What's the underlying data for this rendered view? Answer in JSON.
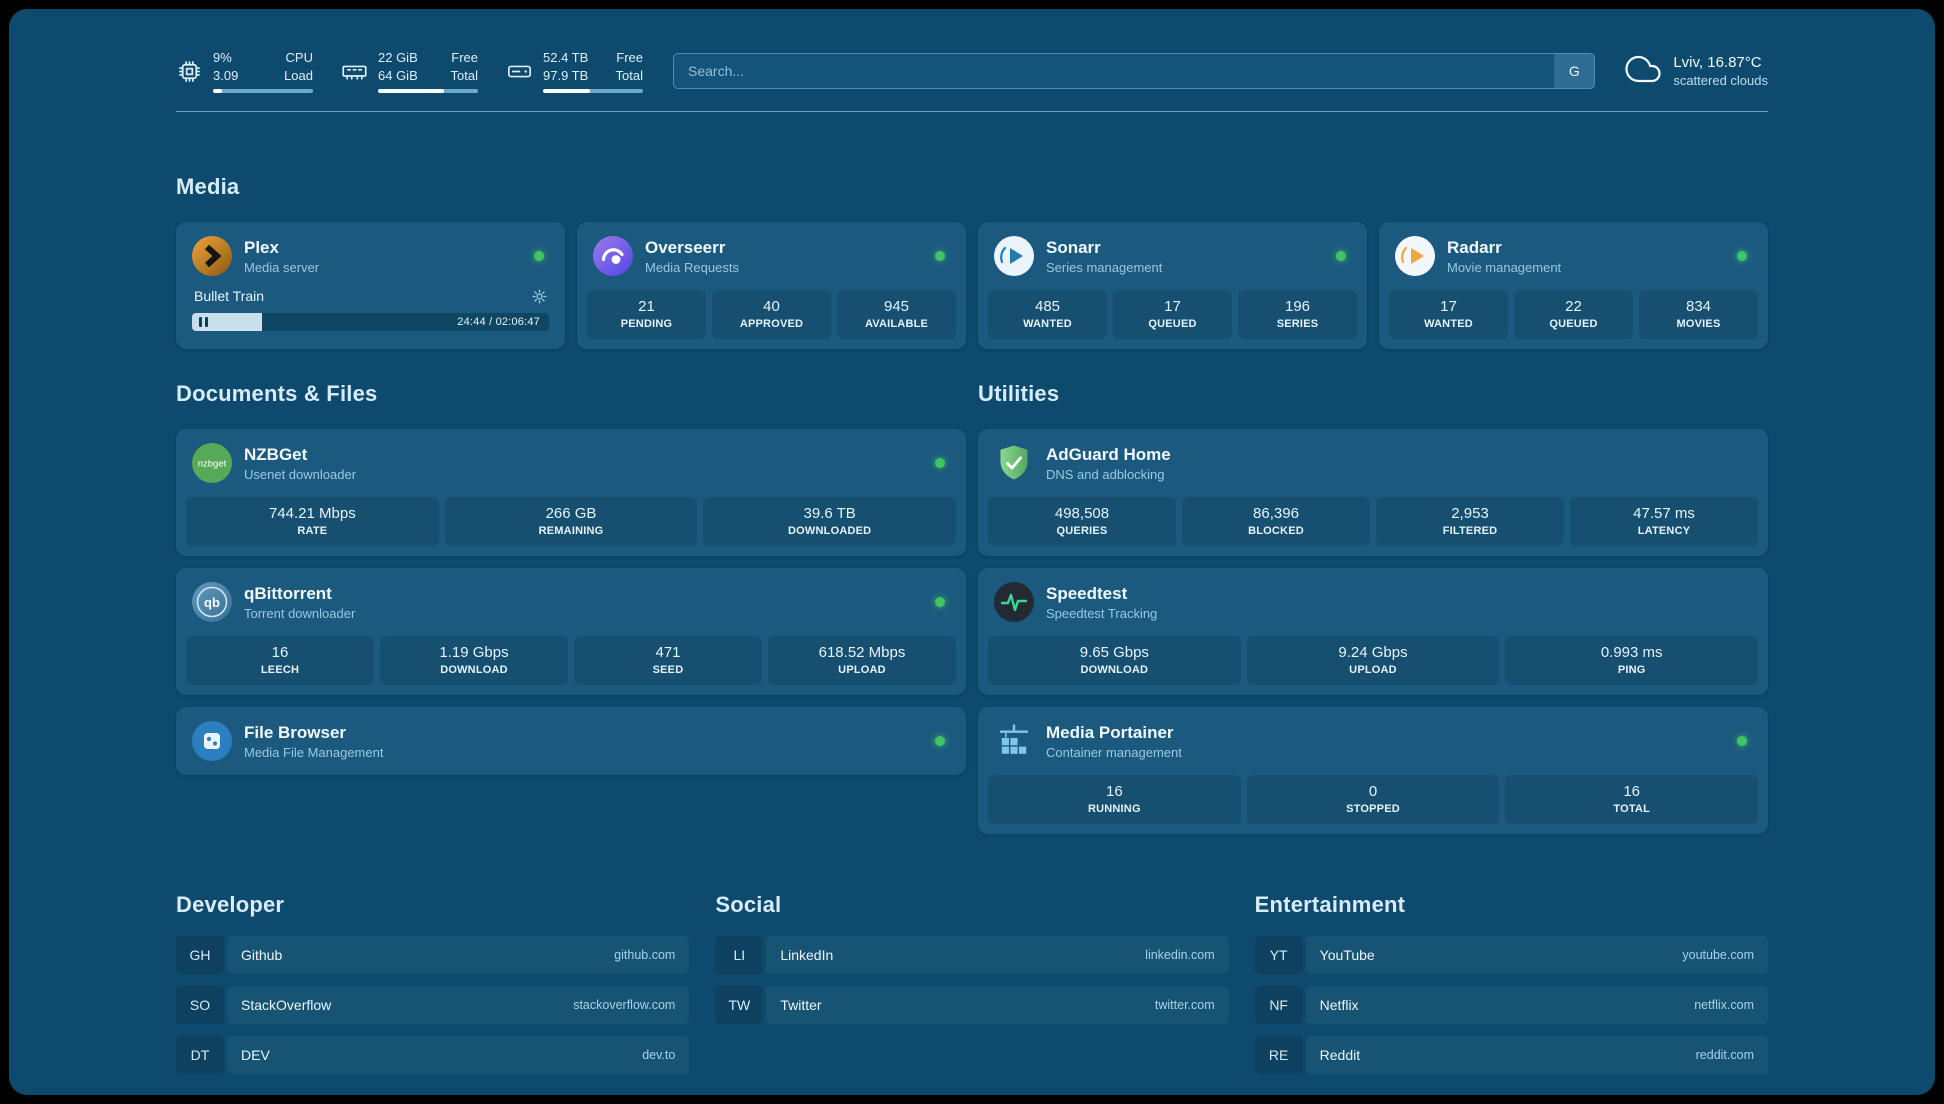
{
  "colors": {
    "background": "#0E4A6E",
    "card": "#1B5A7E",
    "status_online": "#41C463",
    "text_muted": "#9BC8E0"
  },
  "header": {
    "cpu": {
      "value_top": "9%",
      "value_bottom": "3.09",
      "label_top": "CPU",
      "label_bottom": "Load",
      "bar_percent": 9
    },
    "ram": {
      "value_top": "22 GiB",
      "value_bottom": "64 GiB",
      "label_top": "Free",
      "label_bottom": "Total",
      "bar_percent": 66
    },
    "disk": {
      "value_top": "52.4 TB",
      "value_bottom": "97.9 TB",
      "label_top": "Free",
      "label_bottom": "Total",
      "bar_percent": 47
    },
    "search": {
      "placeholder": "Search...",
      "engine_label": "G"
    },
    "weather": {
      "location": "Lviv, 16.87°C",
      "condition": "scattered clouds"
    }
  },
  "sections": {
    "media": {
      "title": "Media"
    },
    "documents": {
      "title": "Documents & Files"
    },
    "utilities": {
      "title": "Utilities"
    },
    "developer": {
      "title": "Developer"
    },
    "social": {
      "title": "Social"
    },
    "entertainment": {
      "title": "Entertainment"
    }
  },
  "apps": {
    "plex": {
      "name": "Plex",
      "subtitle": "Media server",
      "now_playing": {
        "title": "Bullet Train",
        "time": "24:44 / 02:06:47",
        "progress_percent": 19.5
      }
    },
    "overseerr": {
      "name": "Overseerr",
      "subtitle": "Media Requests",
      "stats": [
        {
          "value": "21",
          "label": "PENDING"
        },
        {
          "value": "40",
          "label": "APPROVED"
        },
        {
          "value": "945",
          "label": "AVAILABLE"
        }
      ]
    },
    "sonarr": {
      "name": "Sonarr",
      "subtitle": "Series management",
      "stats": [
        {
          "value": "485",
          "label": "WANTED"
        },
        {
          "value": "17",
          "label": "QUEUED"
        },
        {
          "value": "196",
          "label": "SERIES"
        }
      ]
    },
    "radarr": {
      "name": "Radarr",
      "subtitle": "Movie management",
      "stats": [
        {
          "value": "17",
          "label": "WANTED"
        },
        {
          "value": "22",
          "label": "QUEUED"
        },
        {
          "value": "834",
          "label": "MOVIES"
        }
      ]
    },
    "nzbget": {
      "name": "NZBGet",
      "subtitle": "Usenet downloader",
      "icon_text": "nzbget",
      "stats": [
        {
          "value": "744.21 Mbps",
          "label": "RATE"
        },
        {
          "value": "266 GB",
          "label": "REMAINING"
        },
        {
          "value": "39.6 TB",
          "label": "DOWNLOADED"
        }
      ]
    },
    "qbittorrent": {
      "name": "qBittorrent",
      "subtitle": "Torrent downloader",
      "icon_text": "qb",
      "stats": [
        {
          "value": "16",
          "label": "LEECH"
        },
        {
          "value": "1.19 Gbps",
          "label": "DOWNLOAD"
        },
        {
          "value": "471",
          "label": "SEED"
        },
        {
          "value": "618.52 Mbps",
          "label": "UPLOAD"
        }
      ]
    },
    "filebrowser": {
      "name": "File Browser",
      "subtitle": "Media File Management"
    },
    "adguard": {
      "name": "AdGuard Home",
      "subtitle": "DNS and adblocking",
      "stats": [
        {
          "value": "498,508",
          "label": "QUERIES"
        },
        {
          "value": "86,396",
          "label": "BLOCKED"
        },
        {
          "value": "2,953",
          "label": "FILTERED"
        },
        {
          "value": "47.57 ms",
          "label": "LATENCY"
        }
      ]
    },
    "speedtest": {
      "name": "Speedtest",
      "subtitle": "Speedtest Tracking",
      "stats": [
        {
          "value": "9.65 Gbps",
          "label": "DOWNLOAD"
        },
        {
          "value": "9.24 Gbps",
          "label": "UPLOAD"
        },
        {
          "value": "0.993 ms",
          "label": "PING"
        }
      ]
    },
    "portainer": {
      "name": "Media Portainer",
      "subtitle": "Container management",
      "stats": [
        {
          "value": "16",
          "label": "RUNNING"
        },
        {
          "value": "0",
          "label": "STOPPED"
        },
        {
          "value": "16",
          "label": "TOTAL"
        }
      ]
    }
  },
  "bookmarks": {
    "developer": [
      {
        "abbr": "GH",
        "name": "Github",
        "url": "github.com"
      },
      {
        "abbr": "SO",
        "name": "StackOverflow",
        "url": "stackoverflow.com"
      },
      {
        "abbr": "DT",
        "name": "DEV",
        "url": "dev.to"
      }
    ],
    "social": [
      {
        "abbr": "LI",
        "name": "LinkedIn",
        "url": "linkedin.com"
      },
      {
        "abbr": "TW",
        "name": "Twitter",
        "url": "twitter.com"
      }
    ],
    "entertainment": [
      {
        "abbr": "YT",
        "name": "YouTube",
        "url": "youtube.com"
      },
      {
        "abbr": "NF",
        "name": "Netflix",
        "url": "netflix.com"
      },
      {
        "abbr": "RE",
        "name": "Reddit",
        "url": "reddit.com"
      }
    ]
  }
}
